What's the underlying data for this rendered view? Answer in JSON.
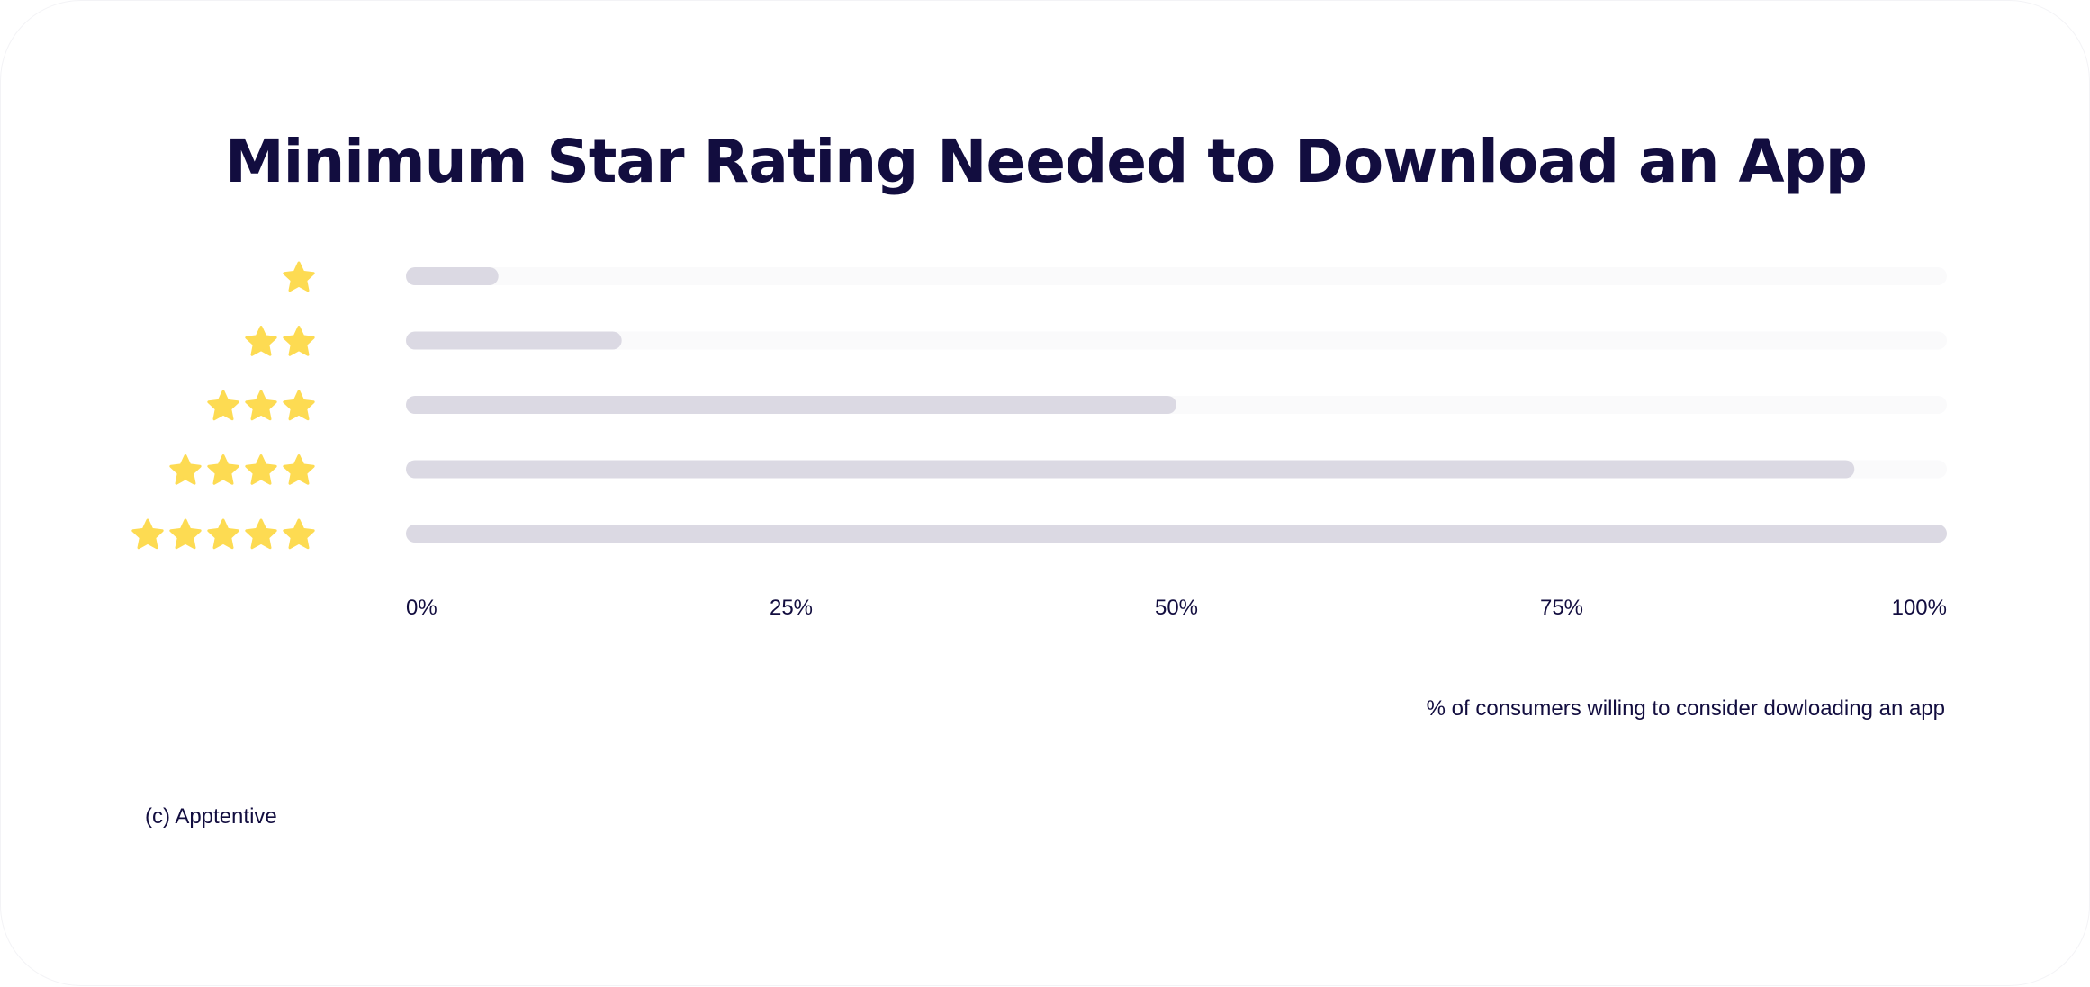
{
  "chart_data": {
    "type": "bar",
    "orientation": "horizontal",
    "title": "Minimum Star Rating Needed to Download an App",
    "xlabel": "% of consumers willing to consider dowloading an app",
    "ylabel": "",
    "categories": [
      1,
      2,
      3,
      4,
      5
    ],
    "category_display": "stars",
    "values": [
      6,
      14,
      50,
      94,
      100
    ],
    "xlim": [
      0,
      100
    ],
    "x_ticks": [
      "0%",
      "25%",
      "50%",
      "75%",
      "100%"
    ],
    "x_tick_values": [
      0,
      25,
      50,
      75,
      100
    ],
    "grid": false,
    "legend": "none"
  },
  "credit": "(c) Apptentive",
  "colors": {
    "title": "#120d3f",
    "text": "#120d3f",
    "bar": "#dbd9e3",
    "track": "#fafafb",
    "star": "#fddb52"
  },
  "icons": {
    "rating": "star-icon"
  }
}
